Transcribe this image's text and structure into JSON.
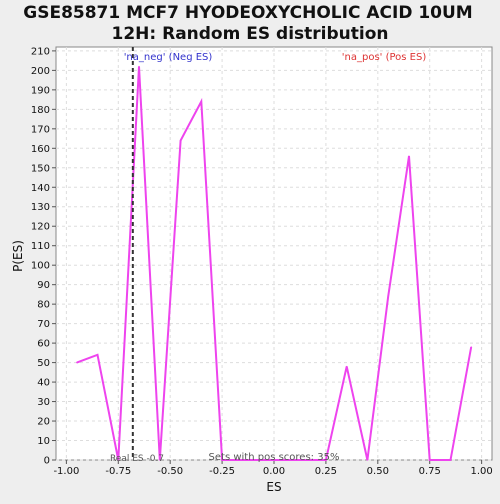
{
  "chart_data": {
    "type": "line",
    "title_line1": "GSE85871 MCF7 HYODEOXYCHOLIC ACID 10UM",
    "title_line2": "12H: Random ES distribution",
    "xlabel": "ES",
    "ylabel": "P(ES)",
    "xlim": [
      -1.05,
      1.05
    ],
    "ylim": [
      0,
      212
    ],
    "xticks": [
      -1.0,
      -0.75,
      -0.5,
      -0.25,
      0.0,
      0.25,
      0.5,
      0.75,
      1.0
    ],
    "xtick_labels": [
      "-1.00",
      "-0.75",
      "-0.50",
      "-0.25",
      "0.00",
      "0.25",
      "0.50",
      "0.75",
      "1.00"
    ],
    "yticks": [
      0,
      10,
      20,
      30,
      40,
      50,
      60,
      70,
      80,
      90,
      100,
      110,
      120,
      130,
      140,
      150,
      160,
      170,
      180,
      190,
      200,
      210
    ],
    "grid": true,
    "series": [
      {
        "color": "#ee44ee",
        "x": [
          -0.95,
          -0.85,
          -0.75,
          -0.65,
          -0.55,
          -0.45,
          -0.35,
          -0.25,
          -0.15,
          -0.05,
          0.05,
          0.15,
          0.25,
          0.35,
          0.45,
          0.55,
          0.65,
          0.75,
          0.85,
          0.95
        ],
        "y": [
          50,
          54,
          0,
          202,
          0,
          164,
          184,
          0,
          0,
          0,
          0,
          0,
          0,
          48,
          0,
          84,
          156,
          0,
          0,
          58
        ]
      }
    ],
    "real_es": -0.68,
    "real_es_label": "Real ES -0.7",
    "neg_label": "'na_neg' (Neg ES)",
    "pos_label": "'na_pos' (Pos ES)",
    "footer_label": "Sets with pos scores: 35%",
    "colors": {
      "line": "#ee44ee",
      "neg_label": "#3333cc",
      "pos_label": "#dd3333",
      "real_es_line": "#333333",
      "grid": "#dddddd",
      "background": "#eeeeee",
      "plot_background": "#ffffff"
    }
  }
}
